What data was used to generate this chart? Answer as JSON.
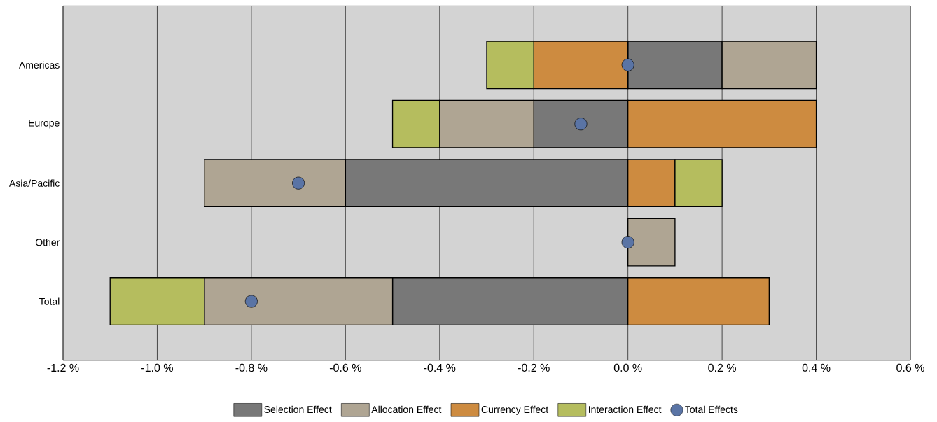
{
  "chart_data": {
    "type": "bar",
    "orientation": "horizontal",
    "stacked": true,
    "categories": [
      "Americas",
      "Europe",
      "Asia/Pacific",
      "Other",
      "Total"
    ],
    "series": [
      {
        "name": "Selection Effect",
        "color": "#787878",
        "values": [
          0.2,
          -0.2,
          -0.6,
          0,
          -0.5
        ]
      },
      {
        "name": "Allocation Effect",
        "color": "#afa593",
        "values": [
          0.2,
          -0.2,
          -0.3,
          0.1,
          -0.4
        ]
      },
      {
        "name": "Currency Effect",
        "color": "#cd8b40",
        "values": [
          -0.2,
          0.4,
          0.1,
          0,
          0.3
        ]
      },
      {
        "name": "Interaction Effect",
        "color": "#b5bd5e",
        "values": [
          -0.1,
          -0.1,
          0.1,
          0,
          -0.2
        ]
      },
      {
        "name": "Total Effects",
        "type": "scatter",
        "marker": "circle",
        "color": "#5a74a5",
        "values": [
          0.0,
          -0.1,
          -0.7,
          0.0,
          -0.8
        ]
      }
    ],
    "xlim": [
      -1.2,
      0.6
    ],
    "xticks": [
      {
        "value": -1.2,
        "label": "-1.2 %"
      },
      {
        "value": -1.0,
        "label": "-1.0 %"
      },
      {
        "value": -0.8,
        "label": "-0.8 %"
      },
      {
        "value": -0.6,
        "label": "-0.6 %"
      },
      {
        "value": -0.4,
        "label": "-0.4 %"
      },
      {
        "value": -0.2,
        "label": "-0.2 %"
      },
      {
        "value": 0.0,
        "label": "0.0 %"
      },
      {
        "value": 0.2,
        "label": "0.2 %"
      },
      {
        "value": 0.4,
        "label": "0.4 %"
      },
      {
        "value": 0.6,
        "label": "0.6 %"
      }
    ],
    "grid": "x",
    "legend": "bottom"
  }
}
